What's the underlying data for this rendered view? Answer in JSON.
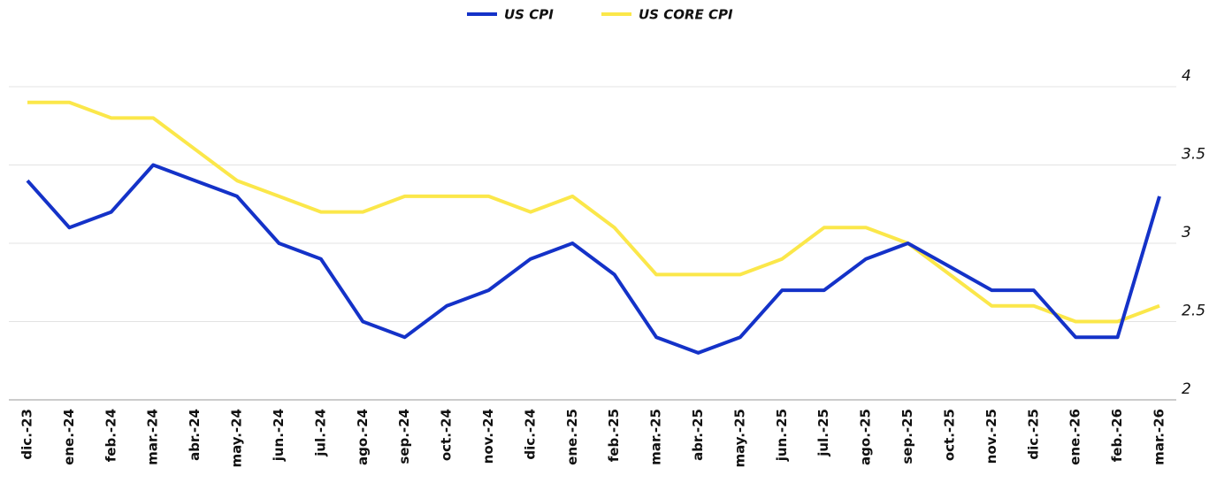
{
  "chart_data": {
    "type": "line",
    "categories": [
      "dic.-23",
      "ene.-24",
      "feb.-24",
      "mar.-24",
      "abr.-24",
      "may.-24",
      "jun.-24",
      "jul.-24",
      "ago.-24",
      "sep.-24",
      "oct.-24",
      "nov.-24",
      "dic.-24",
      "ene.-25",
      "feb.-25",
      "mar.-25",
      "abr.-25",
      "may.-25",
      "jun.-25",
      "jul.-25",
      "ago.-25",
      "sep.-25",
      "oct.-25",
      "nov.-25",
      "dic.-25",
      "ene.-26",
      "feb.-26",
      "mar.-26"
    ],
    "series": [
      {
        "name": "US CPI",
        "color": "#1432c8",
        "values": [
          3.4,
          3.1,
          3.2,
          3.5,
          3.4,
          3.3,
          3.0,
          2.9,
          2.5,
          2.4,
          2.6,
          2.7,
          2.9,
          3.0,
          2.8,
          2.4,
          2.3,
          2.4,
          2.7,
          2.7,
          2.9,
          3.0,
          2.85,
          2.7,
          2.7,
          2.4,
          2.4,
          3.3
        ]
      },
      {
        "name": "US CORE CPI",
        "color": "#fbe74a",
        "values": [
          3.9,
          3.9,
          3.8,
          3.8,
          3.6,
          3.4,
          3.3,
          3.2,
          3.2,
          3.3,
          3.3,
          3.3,
          3.2,
          3.3,
          3.1,
          2.8,
          2.8,
          2.8,
          2.9,
          3.1,
          3.1,
          3.0,
          2.8,
          2.6,
          2.6,
          2.5,
          2.5,
          2.6
        ]
      }
    ],
    "ylim": [
      2,
      4
    ],
    "yticks": [
      2,
      2.5,
      3,
      3.5,
      4
    ],
    "grid": true,
    "legend": "top"
  }
}
